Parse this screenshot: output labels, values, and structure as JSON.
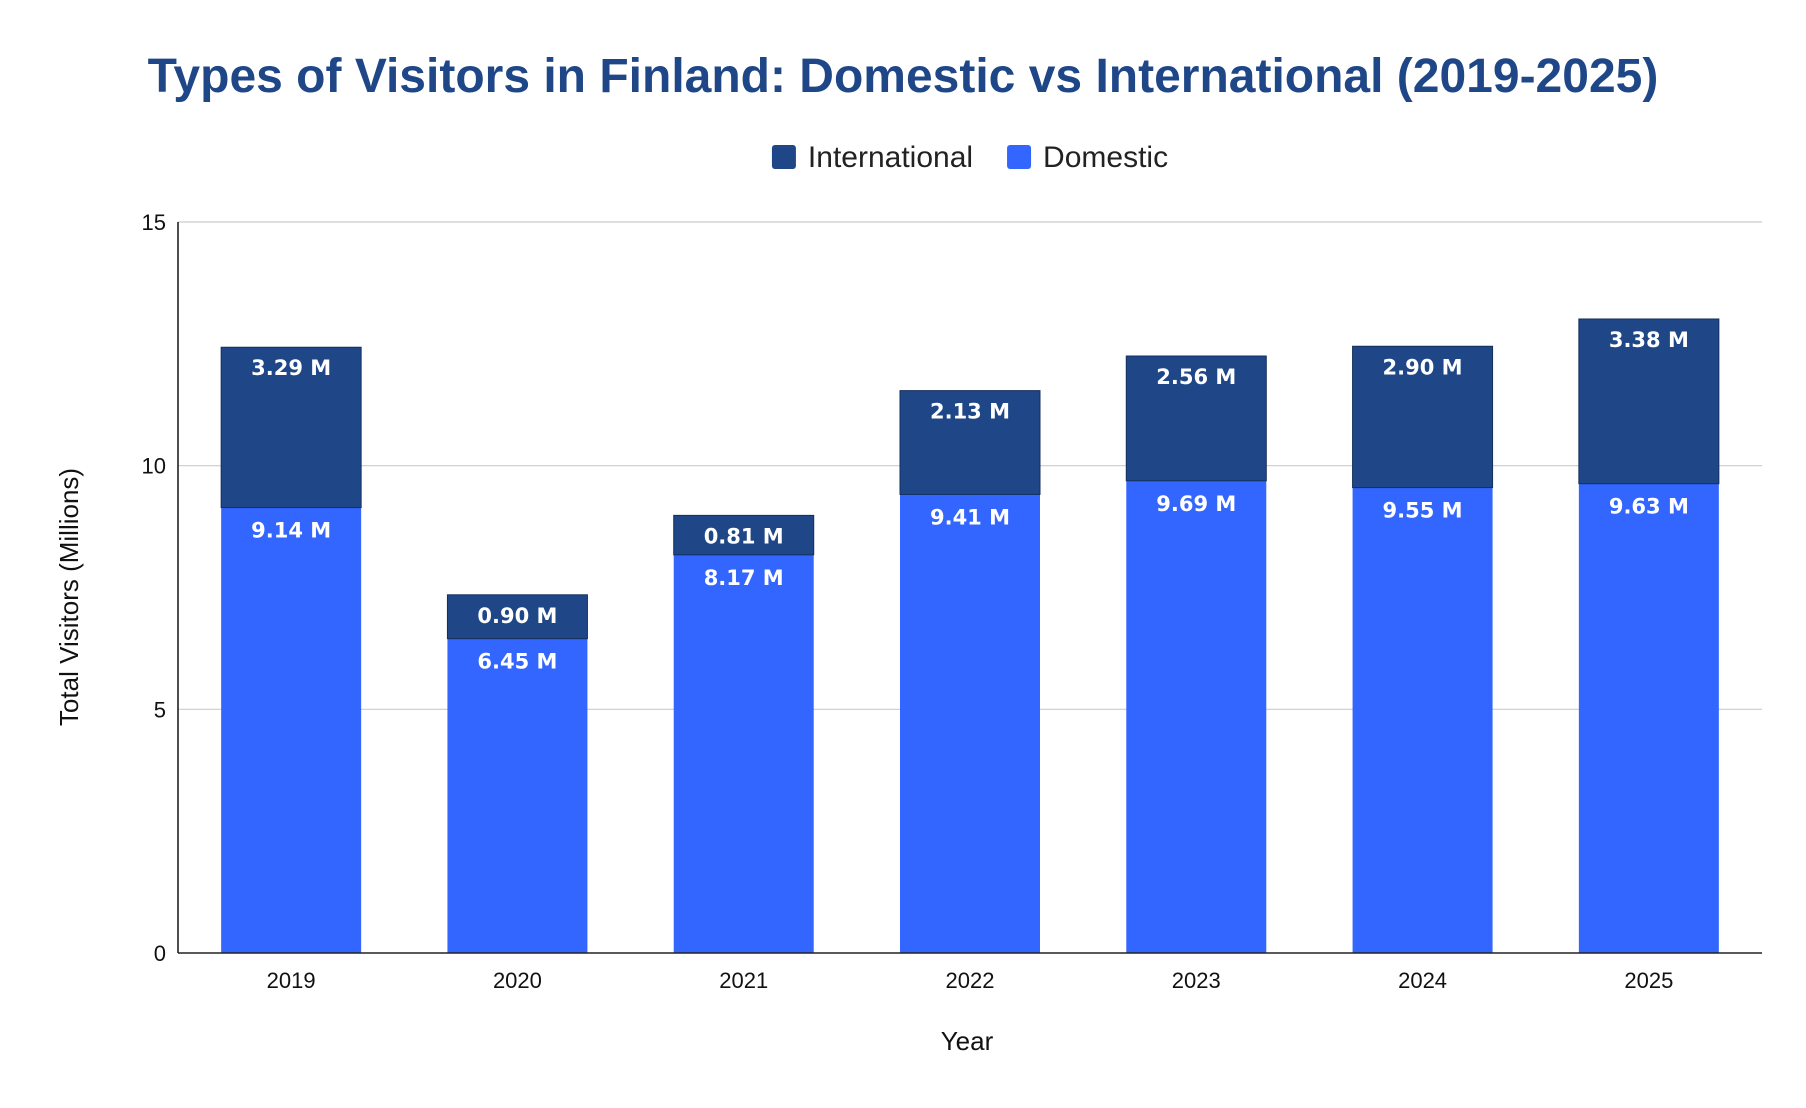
{
  "chart_data": {
    "type": "bar",
    "stacked": true,
    "title": "Types of Visitors in Finland: Domestic vs International (2019-2025)",
    "xlabel": "Year",
    "ylabel": "Total Visitors (Millions)",
    "categories": [
      "2019",
      "2020",
      "2021",
      "2022",
      "2023",
      "2024",
      "2025"
    ],
    "ylim": [
      0,
      15
    ],
    "yticks": [
      0,
      5,
      10,
      15
    ],
    "grid": true,
    "legend_position": "top-center",
    "series": [
      {
        "name": "Domestic",
        "color": "#3366ff",
        "values": [
          9.14,
          6.45,
          8.17,
          9.41,
          9.69,
          9.55,
          9.63
        ],
        "labels": [
          "9.14 M",
          "6.45 M",
          "8.17 M",
          "9.41 M",
          "9.69 M",
          "9.55 M",
          "9.63 M"
        ]
      },
      {
        "name": "International",
        "color": "#1f4788",
        "values": [
          3.29,
          0.9,
          0.81,
          2.13,
          2.56,
          2.9,
          3.38
        ],
        "labels": [
          "3.29 M",
          "0.90 M",
          "0.81 M",
          "2.13 M",
          "2.56 M",
          "2.90 M",
          "3.38 M"
        ]
      }
    ],
    "legend_order": [
      "International",
      "Domestic"
    ]
  }
}
